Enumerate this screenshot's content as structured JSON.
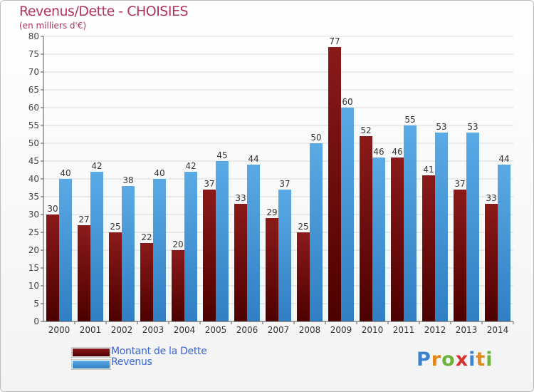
{
  "title": "Revenus/Dette - CHOISIES",
  "subtitle": "(en milliers d'€)",
  "legend": {
    "dette": "Montant de la Dette",
    "revenus": "Revenus"
  },
  "logo": {
    "text": "Proxiti"
  },
  "colors": {
    "title": "#b0335a",
    "dette_top": "#8b1a1a",
    "dette_bottom": "#4d0000",
    "revenus_top": "#5aaae6",
    "revenus_bottom": "#2f7fc2",
    "legend_text": "#3a64d6",
    "grid": "#d9d9d9"
  },
  "chart_data": {
    "type": "bar",
    "title": "Revenus/Dette - CHOISIES",
    "subtitle": "(en milliers d'€)",
    "xlabel": "",
    "ylabel": "",
    "ylim": [
      0,
      80
    ],
    "yticks": [
      0,
      5,
      10,
      15,
      20,
      25,
      30,
      35,
      40,
      45,
      50,
      55,
      60,
      65,
      70,
      75,
      80
    ],
    "grid": true,
    "legend_position": "bottom-left",
    "categories": [
      "2000",
      "2001",
      "2002",
      "2003",
      "2004",
      "2005",
      "2006",
      "2007",
      "2008",
      "2009",
      "2010",
      "2011",
      "2012",
      "2013",
      "2014"
    ],
    "series": [
      {
        "name": "Montant de la Dette",
        "values": [
          30,
          27,
          25,
          22,
          20,
          37,
          33,
          29,
          25,
          77,
          52,
          46,
          41,
          37,
          33
        ]
      },
      {
        "name": "Revenus",
        "values": [
          40,
          42,
          38,
          40,
          42,
          45,
          44,
          37,
          50,
          60,
          46,
          55,
          53,
          53,
          44
        ]
      }
    ]
  }
}
